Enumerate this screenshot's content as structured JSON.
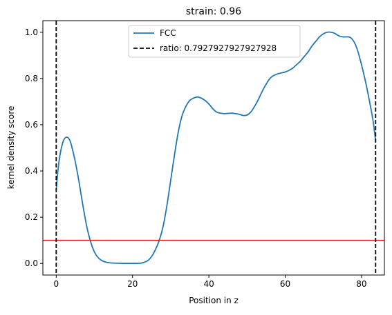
{
  "chart_data": {
    "type": "line",
    "title": "strain: 0.96",
    "xlabel": "Position in z",
    "ylabel": "kernel density score",
    "xlim": [
      -3.5,
      86.0
    ],
    "ylim": [
      -0.05,
      1.05
    ],
    "x_ticks": [
      0,
      20,
      40,
      60,
      80
    ],
    "x_tick_labels": [
      "0",
      "20",
      "40",
      "60",
      "80"
    ],
    "y_ticks": [
      0.0,
      0.2,
      0.4,
      0.6,
      0.8,
      1.0
    ],
    "y_tick_labels": [
      "0.0",
      "0.2",
      "0.4",
      "0.6",
      "0.8",
      "1.0"
    ],
    "grid": false,
    "legend_position": "top-center",
    "series": [
      {
        "name": "FCC",
        "color": "#1f77b4",
        "x": [
          0.0,
          0.5,
          1.0,
          1.5,
          2.0,
          2.5,
          3.0,
          3.5,
          4.0,
          5.0,
          6.0,
          7.0,
          8.0,
          9.0,
          10.0,
          11.0,
          12.0,
          13.0,
          14.0,
          16.0,
          18.0,
          20.0,
          22.0,
          23.0,
          24.0,
          25.0,
          26.0,
          27.0,
          28.0,
          29.0,
          30.0,
          31.0,
          32.0,
          33.0,
          34.0,
          35.0,
          36.0,
          37.0,
          38.0,
          39.0,
          40.0,
          41.0,
          42.0,
          43.0,
          44.0,
          45.0,
          46.0,
          47.0,
          48.0,
          49.0,
          50.0,
          51.0,
          52.0,
          53.0,
          54.0,
          55.0,
          56.0,
          57.0,
          58.0,
          59.0,
          60.0,
          61.0,
          62.0,
          63.0,
          64.0,
          65.0,
          66.0,
          67.0,
          68.0,
          69.0,
          70.0,
          71.0,
          72.0,
          73.0,
          74.0,
          75.0,
          76.0,
          77.0,
          78.0,
          79.0,
          80.0,
          81.0,
          82.0,
          83.0,
          83.7
        ],
        "y": [
          0.32,
          0.41,
          0.47,
          0.51,
          0.535,
          0.545,
          0.545,
          0.535,
          0.51,
          0.44,
          0.35,
          0.25,
          0.16,
          0.095,
          0.05,
          0.025,
          0.012,
          0.006,
          0.003,
          0.001,
          0.0005,
          0.0005,
          0.001,
          0.005,
          0.012,
          0.03,
          0.06,
          0.1,
          0.16,
          0.25,
          0.36,
          0.47,
          0.57,
          0.64,
          0.68,
          0.705,
          0.715,
          0.72,
          0.715,
          0.705,
          0.69,
          0.67,
          0.655,
          0.65,
          0.648,
          0.649,
          0.65,
          0.648,
          0.645,
          0.64,
          0.642,
          0.655,
          0.68,
          0.71,
          0.745,
          0.775,
          0.8,
          0.813,
          0.82,
          0.824,
          0.828,
          0.835,
          0.845,
          0.86,
          0.875,
          0.895,
          0.915,
          0.94,
          0.96,
          0.98,
          0.993,
          1.0,
          1.0,
          0.995,
          0.985,
          0.98,
          0.98,
          0.978,
          0.96,
          0.92,
          0.86,
          0.79,
          0.71,
          0.62,
          0.53
        ]
      },
      {
        "name": "ratio: 0.7927927927927928",
        "color": "#000000",
        "style": "dashed",
        "vlines_x": [
          0,
          83.7
        ]
      }
    ],
    "hlines": [
      {
        "y": 0.1,
        "color": "#e41a1c",
        "style": "solid"
      }
    ]
  }
}
